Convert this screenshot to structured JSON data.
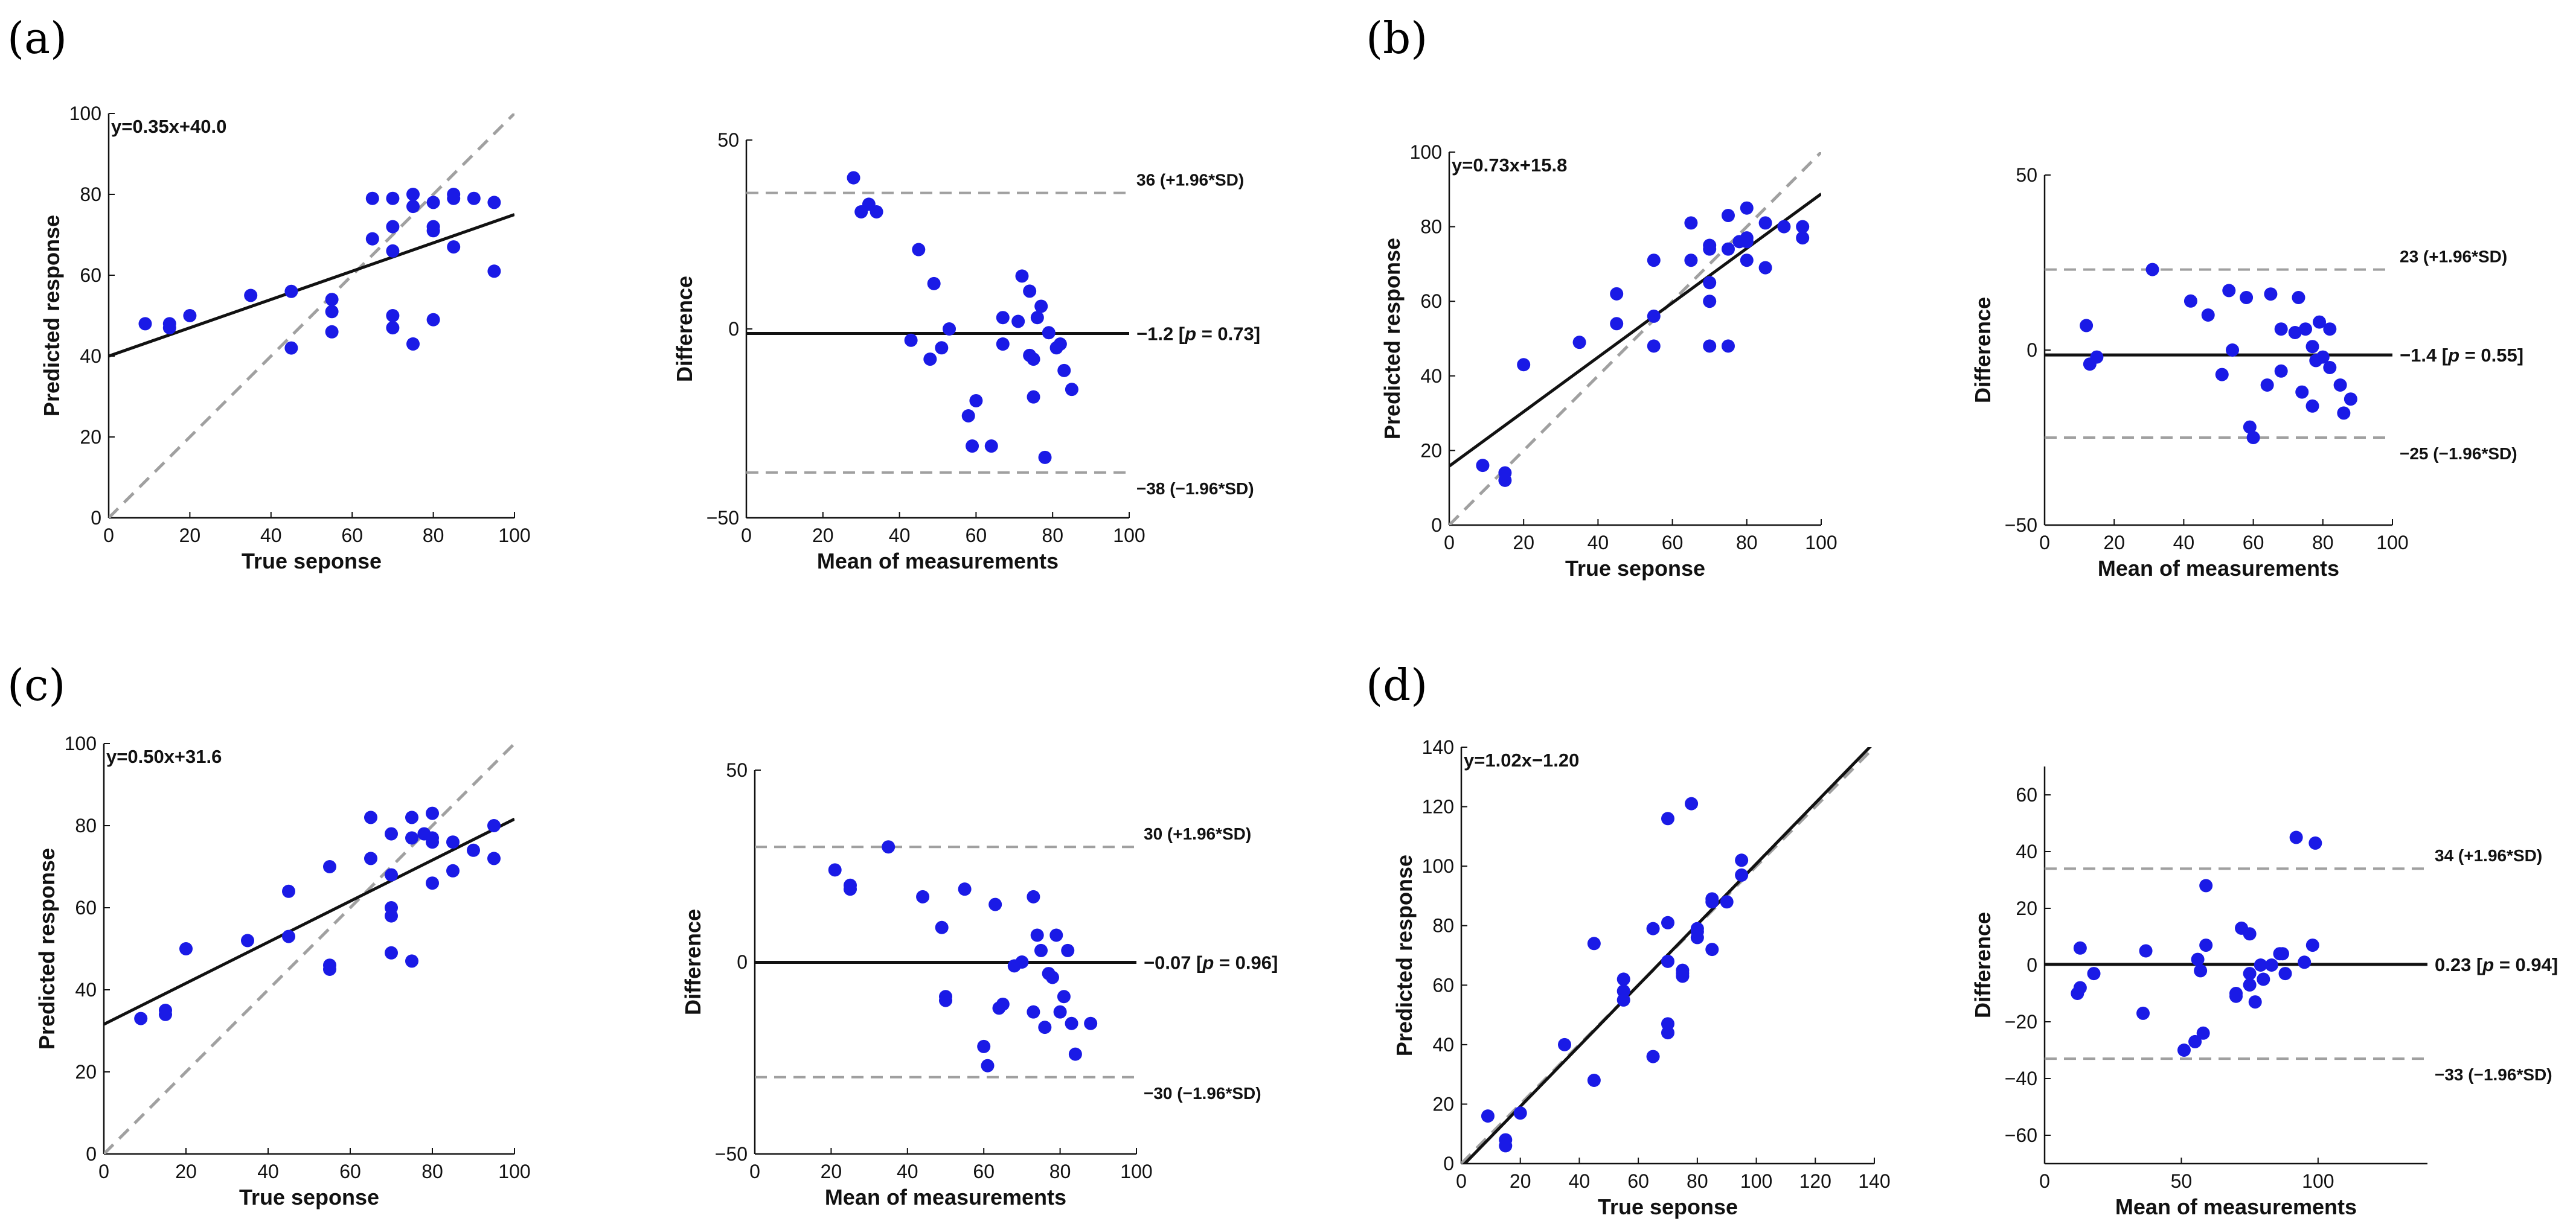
{
  "colors": {
    "point": "#1a1ae6",
    "fit": "#111111",
    "identity": "#a0a0a0",
    "axis": "#111111"
  },
  "panel_labels": [
    "(a)",
    "(b)",
    "(c)",
    "(d)"
  ],
  "chart_data": [
    {
      "id": "a-reg",
      "type": "scatter",
      "panel": "(a)",
      "xlabel": "True seponse",
      "ylabel": "Predicted response",
      "xlim": [
        0,
        100
      ],
      "ylim": [
        0,
        100
      ],
      "xticks": [
        "0",
        "20",
        "40",
        "60",
        "80",
        "100"
      ],
      "yticks": [
        "0",
        "20",
        "40",
        "60",
        "80",
        "100"
      ],
      "xtick_values": [
        0,
        20,
        40,
        60,
        80,
        100
      ],
      "ytick_values": [
        0,
        20,
        40,
        60,
        80,
        100
      ],
      "equation": "y=0.35x+40.0",
      "fit": {
        "slope": 0.35,
        "intercept": 40.0
      },
      "points": [
        [
          9,
          48
        ],
        [
          15,
          48
        ],
        [
          15,
          47
        ],
        [
          20,
          50
        ],
        [
          35,
          55
        ],
        [
          45,
          56
        ],
        [
          45,
          42
        ],
        [
          55,
          54
        ],
        [
          55,
          51
        ],
        [
          55,
          46
        ],
        [
          65,
          79
        ],
        [
          65,
          69
        ],
        [
          70,
          79
        ],
        [
          70,
          72
        ],
        [
          70,
          66
        ],
        [
          70,
          50
        ],
        [
          70,
          47
        ],
        [
          75,
          80
        ],
        [
          75,
          77
        ],
        [
          75,
          43
        ],
        [
          80,
          78
        ],
        [
          80,
          72
        ],
        [
          80,
          71
        ],
        [
          80,
          49
        ],
        [
          85,
          80
        ],
        [
          85,
          79
        ],
        [
          85,
          67
        ],
        [
          90,
          79
        ],
        [
          95,
          78
        ],
        [
          95,
          61
        ]
      ]
    },
    {
      "id": "a-ba",
      "type": "scatter",
      "panel": "(a)",
      "xlabel": "Mean of measurements",
      "ylabel": "Difference",
      "xlim": [
        0,
        100
      ],
      "ylim": [
        -50,
        50
      ],
      "xticks": [
        "0",
        "20",
        "40",
        "60",
        "80",
        "100"
      ],
      "yticks": [
        "−50",
        "0",
        "50"
      ],
      "xtick_values": [
        0,
        20,
        40,
        60,
        80,
        100
      ],
      "ytick_values": [
        -50,
        0,
        50
      ],
      "mean_line": {
        "value": -1.2,
        "label_prefix": "−1.2 [",
        "p_label": "p",
        "label_suffix": " = 0.73]"
      },
      "upper_loa": {
        "value": 36,
        "label": "36 (+1.96*SD)"
      },
      "lower_loa": {
        "value": -38,
        "label": "−38 (−1.96*SD)"
      },
      "points": [
        [
          28,
          40
        ],
        [
          30,
          31
        ],
        [
          32,
          33
        ],
        [
          34,
          31
        ],
        [
          43,
          -3
        ],
        [
          45,
          21
        ],
        [
          48,
          -8
        ],
        [
          49,
          12
        ],
        [
          51,
          -5
        ],
        [
          53,
          0
        ],
        [
          58,
          -23
        ],
        [
          59,
          -31
        ],
        [
          60,
          -19
        ],
        [
          64,
          -31
        ],
        [
          67,
          3
        ],
        [
          67,
          -4
        ],
        [
          71,
          2
        ],
        [
          72,
          14
        ],
        [
          74,
          -7
        ],
        [
          74,
          10
        ],
        [
          75,
          -8
        ],
        [
          75,
          -18
        ],
        [
          76,
          3
        ],
        [
          77,
          6
        ],
        [
          78,
          -34
        ],
        [
          79,
          -1
        ],
        [
          81,
          -5
        ],
        [
          82,
          -4
        ],
        [
          83,
          -11
        ],
        [
          85,
          -16
        ]
      ]
    },
    {
      "id": "b-reg",
      "type": "scatter",
      "panel": "(b)",
      "xlabel": "True seponse",
      "ylabel": "Predicted response",
      "xlim": [
        0,
        100
      ],
      "ylim": [
        0,
        100
      ],
      "xticks": [
        "0",
        "20",
        "40",
        "60",
        "80",
        "100"
      ],
      "yticks": [
        "0",
        "20",
        "40",
        "60",
        "80",
        "100"
      ],
      "xtick_values": [
        0,
        20,
        40,
        60,
        80,
        100
      ],
      "ytick_values": [
        0,
        20,
        40,
        60,
        80,
        100
      ],
      "equation": "y=0.73x+15.8",
      "fit": {
        "slope": 0.73,
        "intercept": 15.8
      },
      "points": [
        [
          9,
          16
        ],
        [
          15,
          14
        ],
        [
          15,
          12
        ],
        [
          20,
          43
        ],
        [
          35,
          49
        ],
        [
          45,
          62
        ],
        [
          45,
          54
        ],
        [
          55,
          71
        ],
        [
          55,
          56
        ],
        [
          55,
          48
        ],
        [
          65,
          81
        ],
        [
          65,
          71
        ],
        [
          70,
          75
        ],
        [
          70,
          74
        ],
        [
          70,
          65
        ],
        [
          70,
          60
        ],
        [
          70,
          48
        ],
        [
          75,
          83
        ],
        [
          75,
          48
        ],
        [
          75,
          74
        ],
        [
          80,
          85
        ],
        [
          80,
          77
        ],
        [
          80,
          76
        ],
        [
          80,
          71
        ],
        [
          85,
          81
        ],
        [
          85,
          69
        ],
        [
          90,
          80
        ],
        [
          95,
          80
        ],
        [
          95,
          77
        ],
        [
          78,
          76
        ]
      ]
    },
    {
      "id": "b-ba",
      "type": "scatter",
      "panel": "(b)",
      "xlabel": "Mean of measurements",
      "ylabel": "Difference",
      "xlim": [
        0,
        100
      ],
      "ylim": [
        -50,
        50
      ],
      "xticks": [
        "0",
        "20",
        "40",
        "60",
        "80",
        "100"
      ],
      "yticks": [
        "−50",
        "0",
        "50"
      ],
      "xtick_values": [
        0,
        20,
        40,
        60,
        80,
        100
      ],
      "ytick_values": [
        -50,
        0,
        50
      ],
      "mean_line": {
        "value": -1.4,
        "label_prefix": "−1.4 [",
        "p_label": "p",
        "label_suffix": " = 0.55]"
      },
      "upper_loa": {
        "value": 23,
        "label": "23 (+1.96*SD)"
      },
      "lower_loa": {
        "value": -25,
        "label": "−25 (−1.96*SD)"
      },
      "points": [
        [
          12,
          7
        ],
        [
          13,
          -4
        ],
        [
          15,
          -2
        ],
        [
          31,
          23
        ],
        [
          42,
          14
        ],
        [
          47,
          10
        ],
        [
          51,
          -7
        ],
        [
          53,
          17
        ],
        [
          54,
          0
        ],
        [
          58,
          15
        ],
        [
          59,
          -22
        ],
        [
          60,
          -25
        ],
        [
          64,
          -10
        ],
        [
          65,
          16
        ],
        [
          68,
          -6
        ],
        [
          68,
          6
        ],
        [
          72,
          5
        ],
        [
          73,
          15
        ],
        [
          74,
          -12
        ],
        [
          75,
          6
        ],
        [
          77,
          -16
        ],
        [
          77,
          1
        ],
        [
          78,
          -3
        ],
        [
          79,
          8
        ],
        [
          80,
          -2
        ],
        [
          82,
          -5
        ],
        [
          82,
          6
        ],
        [
          85,
          -10
        ],
        [
          86,
          -18
        ],
        [
          88,
          -14
        ]
      ]
    },
    {
      "id": "c-reg",
      "type": "scatter",
      "panel": "(c)",
      "xlabel": "True seponse",
      "ylabel": "Predicted response",
      "xlim": [
        0,
        100
      ],
      "ylim": [
        0,
        100
      ],
      "xticks": [
        "0",
        "20",
        "40",
        "60",
        "80",
        "100"
      ],
      "yticks": [
        "0",
        "20",
        "40",
        "60",
        "80",
        "100"
      ],
      "xtick_values": [
        0,
        20,
        40,
        60,
        80,
        100
      ],
      "ytick_values": [
        0,
        20,
        40,
        60,
        80,
        100
      ],
      "equation": "y=0.50x+31.6",
      "fit": {
        "slope": 0.5,
        "intercept": 31.6
      },
      "points": [
        [
          9,
          33
        ],
        [
          15,
          35
        ],
        [
          15,
          34
        ],
        [
          20,
          50
        ],
        [
          35,
          52
        ],
        [
          45,
          64
        ],
        [
          45,
          53
        ],
        [
          55,
          70
        ],
        [
          55,
          46
        ],
        [
          55,
          45
        ],
        [
          65,
          82
        ],
        [
          65,
          72
        ],
        [
          70,
          78
        ],
        [
          70,
          68
        ],
        [
          70,
          60
        ],
        [
          70,
          58
        ],
        [
          70,
          49
        ],
        [
          75,
          82
        ],
        [
          75,
          77
        ],
        [
          75,
          47
        ],
        [
          80,
          83
        ],
        [
          80,
          77
        ],
        [
          80,
          76
        ],
        [
          80,
          66
        ],
        [
          85,
          76
        ],
        [
          85,
          69
        ],
        [
          90,
          74
        ],
        [
          95,
          80
        ],
        [
          95,
          72
        ],
        [
          78,
          78
        ]
      ]
    },
    {
      "id": "c-ba",
      "type": "scatter",
      "panel": "(c)",
      "xlabel": "Mean of measurements",
      "ylabel": "Difference",
      "xlim": [
        0,
        100
      ],
      "ylim": [
        -50,
        50
      ],
      "xticks": [
        "0",
        "20",
        "40",
        "60",
        "80",
        "100"
      ],
      "yticks": [
        "−50",
        "0",
        "50"
      ],
      "xtick_values": [
        0,
        20,
        40,
        60,
        80,
        100
      ],
      "ytick_values": [
        -50,
        0,
        50
      ],
      "mean_line": {
        "value": -0.07,
        "label_prefix": "−0.07 [",
        "p_label": "p",
        "label_suffix": " = 0.96]"
      },
      "upper_loa": {
        "value": 30,
        "label": "30 (+1.96*SD)"
      },
      "lower_loa": {
        "value": -30,
        "label": "−30 (−1.96*SD)"
      },
      "points": [
        [
          21,
          24
        ],
        [
          25,
          20
        ],
        [
          25,
          19
        ],
        [
          35,
          30
        ],
        [
          44,
          17
        ],
        [
          49,
          9
        ],
        [
          50,
          -10
        ],
        [
          50,
          -9
        ],
        [
          55,
          19
        ],
        [
          60,
          -22
        ],
        [
          61,
          -27
        ],
        [
          63,
          15
        ],
        [
          64,
          -12
        ],
        [
          65,
          -11
        ],
        [
          68,
          -1
        ],
        [
          70,
          0
        ],
        [
          73,
          17
        ],
        [
          73,
          -13
        ],
        [
          74,
          7
        ],
        [
          75,
          3
        ],
        [
          76,
          -17
        ],
        [
          77,
          -3
        ],
        [
          78,
          -4
        ],
        [
          79,
          7
        ],
        [
          80,
          -13
        ],
        [
          81,
          -9
        ],
        [
          82,
          3
        ],
        [
          83,
          -16
        ],
        [
          84,
          -24
        ],
        [
          88,
          -16
        ]
      ]
    },
    {
      "id": "d-reg",
      "type": "scatter",
      "panel": "(d)",
      "xlabel": "True seponse",
      "ylabel": "Predicted response",
      "xlim": [
        0,
        140
      ],
      "ylim": [
        0,
        140
      ],
      "xticks": [
        "0",
        "20",
        "40",
        "60",
        "80",
        "100",
        "120",
        "140"
      ],
      "yticks": [
        "0",
        "20",
        "40",
        "60",
        "80",
        "100",
        "120",
        "140"
      ],
      "xtick_values": [
        0,
        20,
        40,
        60,
        80,
        100,
        120,
        140
      ],
      "ytick_values": [
        0,
        20,
        40,
        60,
        80,
        100,
        120,
        140
      ],
      "equation": "y=1.02x−1.20",
      "fit": {
        "slope": 1.02,
        "intercept": -1.2
      },
      "points": [
        [
          9,
          16
        ],
        [
          15,
          8
        ],
        [
          15,
          6
        ],
        [
          20,
          17
        ],
        [
          35,
          40
        ],
        [
          45,
          74
        ],
        [
          45,
          28
        ],
        [
          55,
          62
        ],
        [
          55,
          58
        ],
        [
          55,
          55
        ],
        [
          65,
          79
        ],
        [
          65,
          36
        ],
        [
          70,
          116
        ],
        [
          70,
          81
        ],
        [
          70,
          68
        ],
        [
          70,
          47
        ],
        [
          70,
          44
        ],
        [
          75,
          65
        ],
        [
          75,
          64
        ],
        [
          78,
          121
        ],
        [
          80,
          79
        ],
        [
          80,
          76
        ],
        [
          85,
          89
        ],
        [
          85,
          88
        ],
        [
          85,
          72
        ],
        [
          90,
          88
        ],
        [
          95,
          102
        ],
        [
          95,
          97
        ],
        [
          75,
          63
        ],
        [
          80,
          78
        ]
      ]
    },
    {
      "id": "d-ba",
      "type": "scatter",
      "panel": "(d)",
      "xlabel": "Mean of measurements",
      "ylabel": "Difference",
      "xlim": [
        0,
        140
      ],
      "ylim": [
        -70,
        70
      ],
      "xticks": [
        "0",
        "50",
        "100"
      ],
      "yticks": [
        "−60",
        "−40",
        "−20",
        "0",
        "20",
        "40",
        "60"
      ],
      "xtick_values": [
        0,
        50,
        100
      ],
      "ytick_values": [
        -60,
        -40,
        -20,
        0,
        20,
        40,
        60
      ],
      "mean_line": {
        "value": 0.23,
        "label_prefix": "0.23 [",
        "p_label": "p",
        "label_suffix": " = 0.94]"
      },
      "upper_loa": {
        "value": 34,
        "label": "34 (+1.96*SD)"
      },
      "lower_loa": {
        "value": -33,
        "label": "−33 (−1.96*SD)"
      },
      "points": [
        [
          12,
          -10
        ],
        [
          13,
          -8
        ],
        [
          13,
          6
        ],
        [
          18,
          -3
        ],
        [
          36,
          -17
        ],
        [
          37,
          5
        ],
        [
          51,
          -30
        ],
        [
          55,
          -27
        ],
        [
          56,
          2
        ],
        [
          57,
          -2
        ],
        [
          58,
          -24
        ],
        [
          59,
          7
        ],
        [
          59,
          28
        ],
        [
          70,
          -11
        ],
        [
          70,
          -10
        ],
        [
          72,
          13
        ],
        [
          75,
          -3
        ],
        [
          75,
          11
        ],
        [
          77,
          -13
        ],
        [
          79,
          0
        ],
        [
          80,
          -5
        ],
        [
          83,
          0
        ],
        [
          86,
          4
        ],
        [
          87,
          4
        ],
        [
          88,
          -3
        ],
        [
          92,
          45
        ],
        [
          95,
          1
        ],
        [
          98,
          7
        ],
        [
          99,
          43
        ],
        [
          75,
          -7
        ]
      ]
    }
  ]
}
